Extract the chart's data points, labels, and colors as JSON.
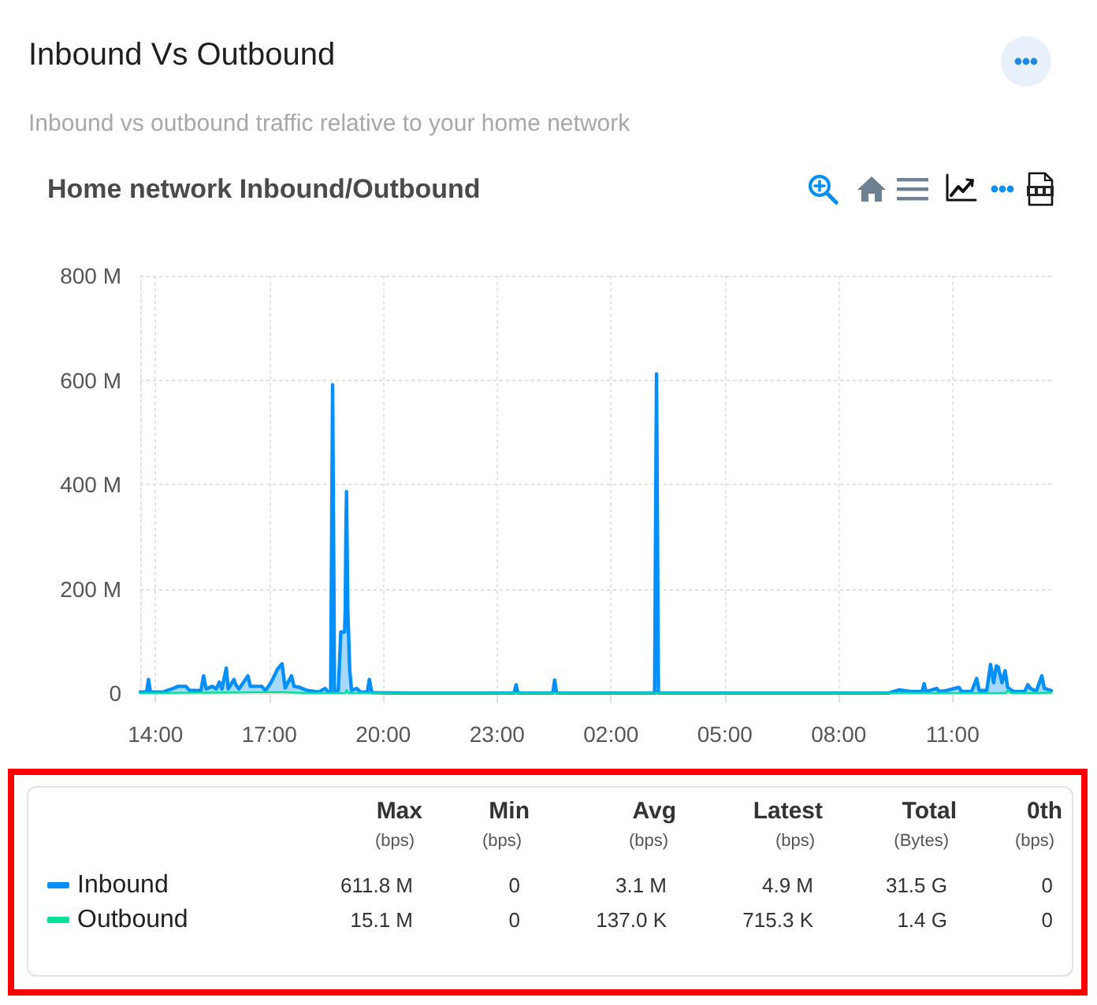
{
  "chart_data": {
    "type": "area",
    "title": "Inbound Vs Outbound",
    "subtitle": "Inbound vs outbound traffic relative to your home network",
    "annotations": [
      "Home network Inbound/Outbound",
      "Max",
      "(bps)",
      "Min",
      "(bps)",
      "Avg",
      "(bps)",
      "Latest",
      "(bps)",
      "Total",
      "(Bytes)",
      "0th",
      "(bps)",
      "611.8 M",
      "0",
      "3.1 M",
      "4.9 M",
      "31.5 G",
      "0",
      "15.1 M",
      "0",
      "137.0 K",
      "715.3 K",
      "1.4 G",
      "0"
    ],
    "xlim": [
      "--01-01T13:36",
      "--01-02T13:36"
    ],
    "xticks": [
      {
        "value": "--01-01T14:00",
        "label": "14:00"
      },
      {
        "value": "--01-01T17:00",
        "label": "17:00"
      },
      {
        "value": "--01-01T20:00",
        "label": "20:00"
      },
      {
        "value": "--01-01T23:00",
        "label": "23:00"
      },
      {
        "value": "--01-02T02:00",
        "label": "02:00"
      },
      {
        "value": "--01-02T05:00",
        "label": "05:00"
      },
      {
        "value": "--01-02T08:00",
        "label": "08:00"
      },
      {
        "value": "--01-02T11:00",
        "label": "11:00"
      }
    ],
    "ylim": [
      0,
      800
    ],
    "yticks": [
      0,
      {
        "value": 200,
        "label": "200 M"
      },
      {
        "value": 400,
        "label": "400 M"
      },
      {
        "value": 600,
        "label": "600 M"
      },
      {
        "value": 800,
        "label": "800 M"
      }
    ],
    "grid": true,
    "legend": "bottom left",
    "series": [
      {
        "name": "Inbound",
        "color": "#008ffb",
        "x": [
          "--01-01T13:36",
          "--01-01T13:46",
          "--01-01T13:49",
          "--01-01T13:52",
          "--01-01T14:12",
          "--01-01T14:28",
          "--01-01T14:36",
          "--01-01T14:48",
          "--01-01T14:54",
          "--01-01T15:12",
          "--01-01T15:16",
          "--01-01T15:20",
          "--01-01T15:30",
          "--01-01T15:36",
          "--01-01T15:41",
          "--01-01T15:45",
          "--01-01T15:52",
          "--01-01T15:55",
          "--01-01T16:04",
          "--01-01T16:07",
          "--01-01T16:12",
          "--01-01T16:26",
          "--01-01T16:30",
          "--01-01T16:48",
          "--01-01T16:54",
          "--01-01T17:03",
          "--01-01T17:13",
          "--01-01T17:20",
          "--01-01T17:25",
          "--01-01T17:35",
          "--01-01T17:39",
          "--01-01T17:48",
          "--01-01T18:00",
          "--01-01T18:18",
          "--01-01T18:28",
          "--01-01T18:33",
          "--01-01T18:37",
          "--01-01T18:40",
          "--01-01T18:43",
          "--01-01T18:49",
          "--01-01T18:53",
          "--01-01T18:59",
          "--01-01T19:00",
          "--01-01T19:01",
          "--01-01T19:02",
          "--01-01T19:04",
          "--01-01T19:07",
          "--01-01T19:10",
          "--01-01T19:18",
          "--01-01T19:24",
          "--01-01T19:35",
          "--01-01T19:38",
          "--01-01T19:42",
          "--01-01T20:30",
          "--01-01T23:27",
          "--01-01T23:30",
          "--01-01T23:33",
          "--01-02T00:28",
          "--01-02T00:31",
          "--01-02T00:34",
          "--01-02T03:09",
          "--01-02T03:12",
          "--01-02T03:15",
          "--01-02T09:18",
          "--01-02T09:35",
          "--01-02T09:54",
          "--01-02T10:12",
          "--01-02T10:15",
          "--01-02T10:18",
          "--01-02T10:35",
          "--01-02T10:39",
          "--01-02T10:51",
          "--01-02T11:10",
          "--01-02T11:14",
          "--01-02T11:30",
          "--01-02T11:38",
          "--01-02T11:42",
          "--01-02T11:54",
          "--01-02T12:00",
          "--01-02T12:05",
          "--01-02T12:09",
          "--01-02T12:12",
          "--01-02T12:18",
          "--01-02T12:23",
          "--01-02T12:27",
          "--01-02T12:36",
          "--01-02T12:54",
          "--01-02T12:59",
          "--01-02T13:03",
          "--01-02T13:12",
          "--01-02T13:21",
          "--01-02T13:25",
          "--01-02T13:36"
        ],
        "values": [
          2,
          2,
          26,
          2,
          2,
          9,
          13,
          13,
          5,
          5,
          33,
          8,
          13,
          8,
          21,
          8,
          48,
          8,
          26,
          16,
          8,
          33,
          13,
          13,
          5,
          21,
          46,
          56,
          10,
          33,
          13,
          11,
          5,
          2,
          9,
          2,
          2,
          591,
          2,
          5,
          117,
          117,
          160,
          302,
          386,
          160,
          45,
          5,
          9,
          2,
          2,
          26,
          1,
          0,
          0,
          16,
          0,
          0,
          25,
          0,
          0,
          611.8,
          0,
          0,
          6,
          3,
          3,
          18,
          3,
          9,
          3,
          5,
          11,
          3,
          3,
          28,
          5,
          5,
          55,
          20,
          52,
          50,
          20,
          43,
          11,
          3,
          3,
          16,
          9,
          3,
          33,
          9,
          4.9
        ]
      },
      {
        "name": "Outbound",
        "color": "#00e396",
        "x": [
          "--01-01T13:36",
          "--01-01T17:18",
          "--01-01T18:00",
          "--01-01T19:00",
          "--01-01T19:02",
          "--01-01T19:06",
          "--01-02T12:24",
          "--01-02T12:27",
          "--01-02T12:33",
          "--01-02T13:36"
        ],
        "values": [
          0,
          2,
          0,
          0,
          6,
          0,
          0,
          6,
          0,
          0.7
        ]
      }
    ]
  }
}
